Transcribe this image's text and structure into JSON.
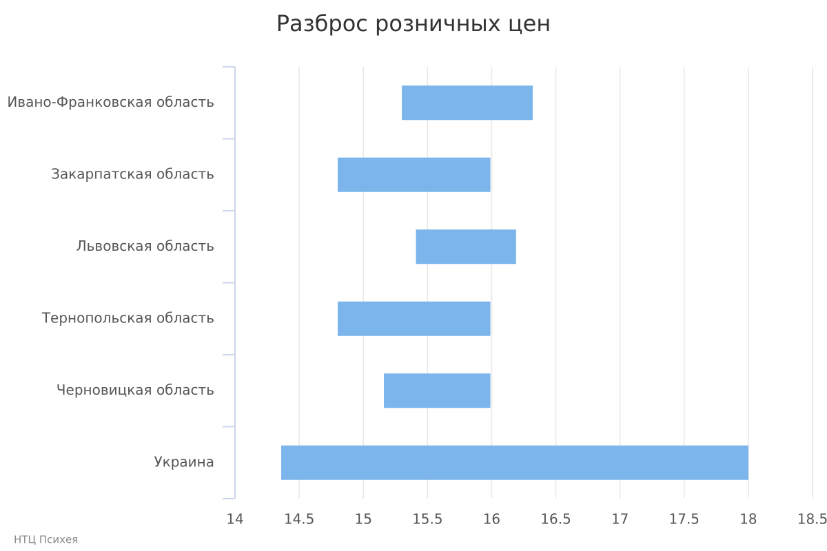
{
  "chart_data": {
    "type": "range_bar",
    "title": "Разброс розничных цен",
    "credits": "НТЦ Психея",
    "categories": [
      "Ивано-Франковская область",
      "Закарпатская область",
      "Львовская область",
      "Тернопольская область",
      "Черновицкая область",
      "Украина"
    ],
    "low": [
      15.3,
      14.8,
      15.41,
      14.8,
      15.16,
      14.36
    ],
    "high": [
      16.32,
      15.99,
      16.19,
      15.99,
      15.99,
      18.0
    ],
    "color": "#7cb5ec",
    "xlim": [
      14,
      18.5
    ],
    "xticks": [
      14,
      14.5,
      15,
      15.5,
      16,
      16.5,
      17,
      17.5,
      18,
      18.5
    ],
    "grid": true
  }
}
